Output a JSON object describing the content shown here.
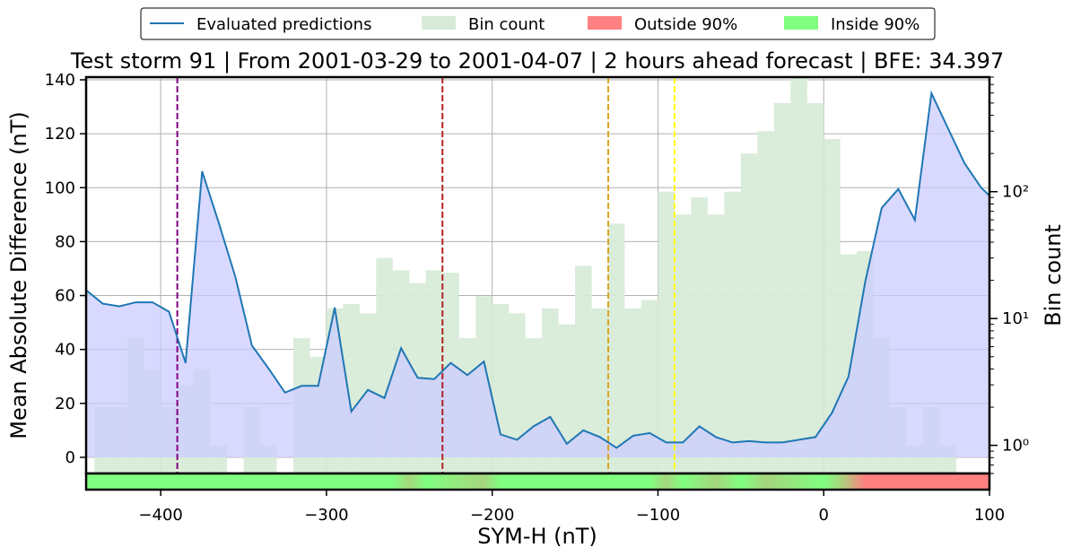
{
  "chart_data": {
    "type": "line",
    "title": "Test storm 91 | From 2001-03-29 to 2001-04-07 | 2 hours ahead forecast | BFE: 34.397",
    "xlabel": "SYM-H (nT)",
    "ylabel": "Mean Absolute Difference (nT)",
    "y2label": "Bin count",
    "xlim": [
      -445,
      100
    ],
    "ylim": [
      -6,
      141
    ],
    "y2scale": "log",
    "y2lim": [
      0.6,
      800
    ],
    "grid": true,
    "legend_position": "top-center",
    "x_ticks": [
      -400,
      -300,
      -200,
      -100,
      0,
      100
    ],
    "x_tick_labels": [
      "−400",
      "−300",
      "−200",
      "−100",
      "0",
      "100"
    ],
    "y_ticks": [
      0,
      20,
      40,
      60,
      80,
      100,
      120,
      140
    ],
    "y_tick_labels": [
      "0",
      "20",
      "40",
      "60",
      "80",
      "100",
      "120",
      "140"
    ],
    "y2_ticks": [
      1,
      10,
      100
    ],
    "y2_tick_labels": [
      "10⁰",
      "10¹",
      "10²"
    ],
    "legend": [
      {
        "label": "Evaluated predictions",
        "kind": "line",
        "color": "#1f77b4"
      },
      {
        "label": "Bin count",
        "kind": "patch",
        "color": "#d8ebd8"
      },
      {
        "label": "Outside 90%",
        "kind": "patch",
        "color": "#ff8080"
      },
      {
        "label": "Inside 90%",
        "kind": "patch",
        "color": "#80ff80"
      }
    ],
    "series": [
      {
        "name": "Evaluated predictions",
        "color": "#1f77b4",
        "fill": "#ccccff",
        "x": [
          -445,
          -435,
          -425,
          -415,
          -405,
          -395,
          -385,
          -375,
          -365,
          -355,
          -345,
          -335,
          -325,
          -315,
          -305,
          -295,
          -285,
          -275,
          -265,
          -255,
          -245,
          -235,
          -225,
          -215,
          -205,
          -195,
          -185,
          -175,
          -165,
          -155,
          -145,
          -135,
          -125,
          -115,
          -105,
          -95,
          -85,
          -75,
          -65,
          -55,
          -45,
          -35,
          -25,
          -15,
          -5,
          5,
          15,
          25,
          35,
          45,
          55,
          65,
          75,
          85,
          95,
          100
        ],
        "values": [
          62,
          57,
          56,
          57.5,
          57.5,
          54,
          35,
          106,
          87,
          67,
          41.5,
          33,
          24,
          26.5,
          26.5,
          55.5,
          17,
          25,
          22,
          40.5,
          29.5,
          29,
          35,
          30.5,
          35.5,
          8.5,
          6.5,
          11.5,
          15,
          5,
          10,
          7.5,
          3.5,
          8,
          9,
          5.5,
          5.5,
          11.5,
          7.5,
          5.5,
          6,
          5.5,
          5.5,
          6.5,
          7.5,
          16.5,
          30,
          65,
          92.5,
          99.5,
          88,
          135,
          122,
          109,
          100,
          97
        ]
      },
      {
        "name": "Bin count",
        "color": "#d8ebd8",
        "bin_width": 10,
        "x": [
          -435,
          -425,
          -415,
          -405,
          -395,
          -385,
          -375,
          -365,
          -355,
          -345,
          -335,
          -325,
          -315,
          -305,
          -295,
          -285,
          -275,
          -265,
          -255,
          -245,
          -235,
          -225,
          -215,
          -205,
          -195,
          -185,
          -175,
          -165,
          -155,
          -145,
          -135,
          -125,
          -115,
          -105,
          -95,
          -85,
          -75,
          -65,
          -55,
          -45,
          -35,
          -25,
          -15,
          -5,
          5,
          15,
          25,
          35,
          45,
          55,
          65,
          75
        ],
        "values": [
          2,
          2,
          7,
          4,
          2,
          3,
          4,
          1,
          0,
          2,
          1,
          0,
          7,
          5,
          12,
          13,
          11,
          30,
          24,
          19,
          24,
          23,
          7,
          15,
          13,
          11,
          7,
          12,
          9,
          26,
          12,
          56,
          12,
          14,
          100,
          66,
          90,
          66,
          100,
          200,
          300,
          500,
          800,
          500,
          260,
          32,
          34,
          7,
          2,
          1,
          2,
          1
        ]
      }
    ],
    "vertical_lines": [
      {
        "x": -390,
        "color": "#800080"
      },
      {
        "x": -230,
        "color": "#b22222"
      },
      {
        "x": -130,
        "color": "#daa520"
      },
      {
        "x": -90,
        "color": "#ffff00"
      }
    ],
    "coverage_bar": {
      "colors": [
        "#80ff80",
        "#ff8080"
      ],
      "stops": [
        {
          "x": -445,
          "state": "inside"
        },
        {
          "x": -260,
          "state": "inside"
        },
        {
          "x": -250,
          "state": "mixed"
        },
        {
          "x": -240,
          "state": "inside"
        },
        {
          "x": -205,
          "state": "mixed"
        },
        {
          "x": -195,
          "state": "inside"
        },
        {
          "x": -105,
          "state": "inside"
        },
        {
          "x": -95,
          "state": "mixed"
        },
        {
          "x": -85,
          "state": "inside"
        },
        {
          "x": -65,
          "state": "mixed"
        },
        {
          "x": -50,
          "state": "inside"
        },
        {
          "x": -35,
          "state": "mixed"
        },
        {
          "x": 0,
          "state": "inside"
        },
        {
          "x": 10,
          "state": "mixed"
        },
        {
          "x": 25,
          "state": "outside"
        },
        {
          "x": 100,
          "state": "outside"
        }
      ]
    }
  }
}
